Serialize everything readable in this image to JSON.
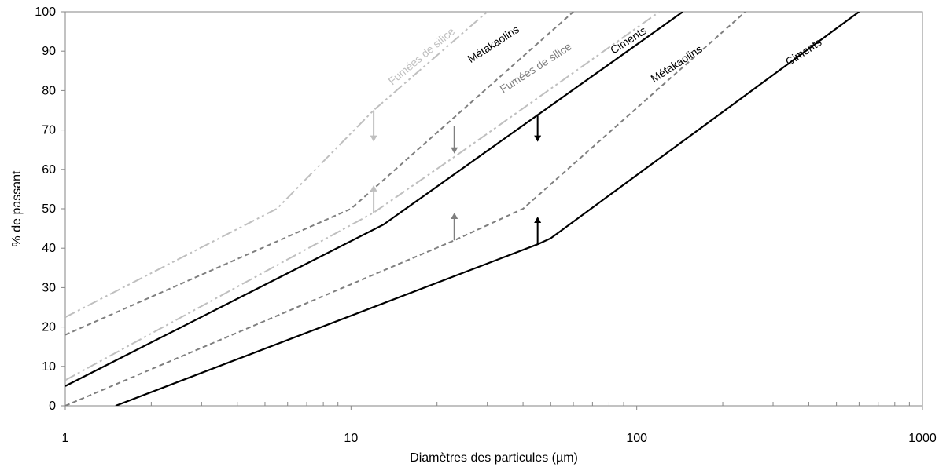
{
  "chart_data": {
    "type": "line",
    "title": "",
    "xlabel": "Diamètres des particules (µm)",
    "ylabel": "% de passant",
    "xscale": "log",
    "xlim": [
      1,
      1000
    ],
    "ylim": [
      0,
      100
    ],
    "x_ticks": [
      "1",
      "10",
      "100",
      "1000"
    ],
    "y_ticks": [
      "0",
      "10",
      "20",
      "30",
      "40",
      "50",
      "60",
      "70",
      "80",
      "90",
      "100"
    ],
    "grid": false,
    "legend": "none",
    "series": [
      {
        "name": "Fumées de silice",
        "style": "dash-dot-dot",
        "color": "#bfbfbf",
        "points": [
          [
            1,
            22.5
          ],
          [
            5.5,
            50
          ],
          [
            12,
            75
          ],
          [
            30,
            100
          ]
        ]
      },
      {
        "name": "Métakaolins",
        "style": "dash",
        "color": "#7f7f7f",
        "points": [
          [
            1,
            18
          ],
          [
            10,
            50
          ],
          [
            60,
            100
          ]
        ]
      },
      {
        "name": "Fumées de silice",
        "style": "dash-dot-dot",
        "color": "#bfbfbf",
        "points": [
          [
            1,
            6.5
          ],
          [
            12,
            49
          ],
          [
            25,
            65
          ],
          [
            120,
            100
          ]
        ]
      },
      {
        "name": "Ciments",
        "style": "solid",
        "color": "#000000",
        "points": [
          [
            1,
            5
          ],
          [
            13,
            46
          ],
          [
            145,
            100
          ]
        ]
      },
      {
        "name": "Métakaolins",
        "style": "dash",
        "color": "#7f7f7f",
        "points": [
          [
            1,
            0
          ],
          [
            23,
            42
          ],
          [
            40,
            50
          ],
          [
            240,
            100
          ]
        ]
      },
      {
        "name": "Ciments",
        "style": "solid",
        "color": "#000000",
        "points": [
          [
            1.5,
            0
          ],
          [
            45,
            41
          ],
          [
            50,
            42.5
          ],
          [
            600,
            100
          ]
        ]
      }
    ],
    "arrows": [
      {
        "color": "#bfbfbf",
        "x": 12,
        "from": 75,
        "to": 67
      },
      {
        "color": "#bfbfbf",
        "x": 12,
        "from": 49,
        "to": 56
      },
      {
        "color": "#7f7f7f",
        "x": 23,
        "from": 71,
        "to": 64
      },
      {
        "color": "#7f7f7f",
        "x": 23,
        "from": 42,
        "to": 49
      },
      {
        "color": "#000000",
        "x": 45,
        "from": 74,
        "to": 67
      },
      {
        "color": "#000000",
        "x": 45,
        "from": 41,
        "to": 48
      }
    ],
    "curve_labels": [
      {
        "text": "Fumées de silice",
        "color": "#bfbfbf",
        "x": 18,
        "y": 88,
        "angle": -40
      },
      {
        "text": "Métakaolins",
        "color": "#000000",
        "x": 32,
        "y": 91,
        "angle": -33
      },
      {
        "text": "Fumées de silice",
        "color": "#7f7f7f",
        "x": 45,
        "y": 85,
        "angle": -33
      },
      {
        "text": "Ciments",
        "color": "#000000",
        "x": 95,
        "y": 92,
        "angle": -33
      },
      {
        "text": "Métakaolins",
        "color": "#000000",
        "x": 140,
        "y": 86,
        "angle": -33
      },
      {
        "text": "Ciments",
        "color": "#000000",
        "x": 390,
        "y": 89,
        "angle": -33
      }
    ]
  }
}
